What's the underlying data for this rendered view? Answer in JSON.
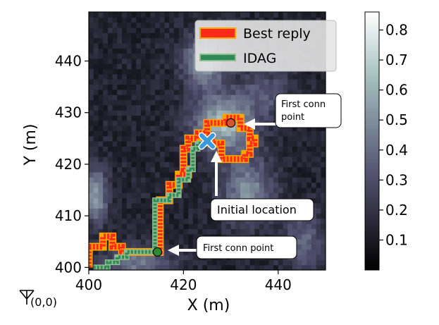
{
  "chart_data": {
    "type": "heatmap",
    "title": "",
    "xlabel": "X (m)",
    "ylabel": "Y (m)",
    "xlim": [
      400,
      450
    ],
    "ylim": [
      399.5,
      449.5
    ],
    "xticks": [
      400,
      420,
      440
    ],
    "yticks": [
      400,
      410,
      420,
      430,
      440
    ],
    "colorbar": {
      "range": [
        0.0,
        0.86
      ],
      "ticks": [
        0.1,
        0.2,
        0.3,
        0.4,
        0.5,
        0.6,
        0.7,
        0.8
      ],
      "colormap": "bone"
    },
    "legend": {
      "position": "top-right",
      "entries": [
        {
          "label": "Best reply",
          "color": "#ff2a1a",
          "edge": "#ffa500"
        },
        {
          "label": "IDAG",
          "color": "#2e8b57",
          "edge": "#8fbc8f"
        }
      ]
    },
    "series": [
      {
        "name": "Best reply",
        "color": "#ff2a1a",
        "points": [
          [
            400,
            400
          ],
          [
            400,
            404
          ],
          [
            403,
            404
          ],
          [
            403,
            406
          ],
          [
            405,
            406
          ],
          [
            405,
            404
          ],
          [
            407,
            404
          ],
          [
            407,
            403
          ],
          [
            414,
            403
          ],
          [
            414,
            403
          ],
          [
            415,
            403
          ],
          [
            415,
            413
          ],
          [
            417,
            413
          ],
          [
            417,
            416
          ],
          [
            419,
            416
          ],
          [
            419,
            418
          ],
          [
            421,
            418
          ],
          [
            421,
            419
          ],
          [
            420,
            419
          ],
          [
            420,
            423
          ],
          [
            421,
            423
          ],
          [
            421,
            425
          ],
          [
            423,
            425
          ],
          [
            423,
            426
          ],
          [
            425,
            426
          ],
          [
            425,
            428
          ],
          [
            429,
            428
          ],
          [
            429,
            429
          ],
          [
            432,
            429
          ],
          [
            432,
            427
          ],
          [
            434,
            427
          ],
          [
            434,
            425
          ],
          [
            435,
            425
          ],
          [
            435,
            424
          ],
          [
            434,
            424
          ],
          [
            434,
            422
          ],
          [
            433,
            422
          ],
          [
            433,
            421
          ],
          [
            428,
            421
          ],
          [
            428,
            424
          ],
          [
            426,
            424
          ],
          [
            426,
            425
          ]
        ]
      },
      {
        "name": "IDAG",
        "color": "#2e8b57",
        "points": [
          [
            401,
            400
          ],
          [
            404,
            400
          ],
          [
            404,
            401
          ],
          [
            406,
            401
          ],
          [
            406,
            402
          ],
          [
            408,
            402
          ],
          [
            408,
            403
          ],
          [
            414,
            403
          ],
          [
            414,
            413
          ],
          [
            417,
            413
          ],
          [
            417,
            414
          ],
          [
            419,
            414
          ],
          [
            419,
            417
          ],
          [
            421,
            417
          ],
          [
            421,
            419
          ],
          [
            422,
            419
          ],
          [
            422,
            423
          ],
          [
            423,
            423
          ],
          [
            423,
            424
          ],
          [
            425,
            424
          ]
        ]
      }
    ],
    "markers": [
      {
        "name": "first-conn-point-lower",
        "x": 414.5,
        "y": 403,
        "color": "#2e8b2e"
      },
      {
        "name": "first-conn-point-upper",
        "x": 430,
        "y": 428,
        "color": "#d9532c"
      },
      {
        "name": "initial-location",
        "x": 425,
        "y": 424.5,
        "color": "#3a9ad9",
        "shape": "x"
      }
    ],
    "annotations": [
      {
        "id": "upper",
        "text_lines": [
          "First conn",
          "point"
        ]
      },
      {
        "id": "lower",
        "text_lines": [
          "First conn point"
        ]
      },
      {
        "id": "initial",
        "text_lines": [
          "Initial location"
        ]
      }
    ],
    "origin_label": "(0,0)"
  },
  "colors": {
    "background": "#ffffff",
    "callout_border": "#000000"
  }
}
